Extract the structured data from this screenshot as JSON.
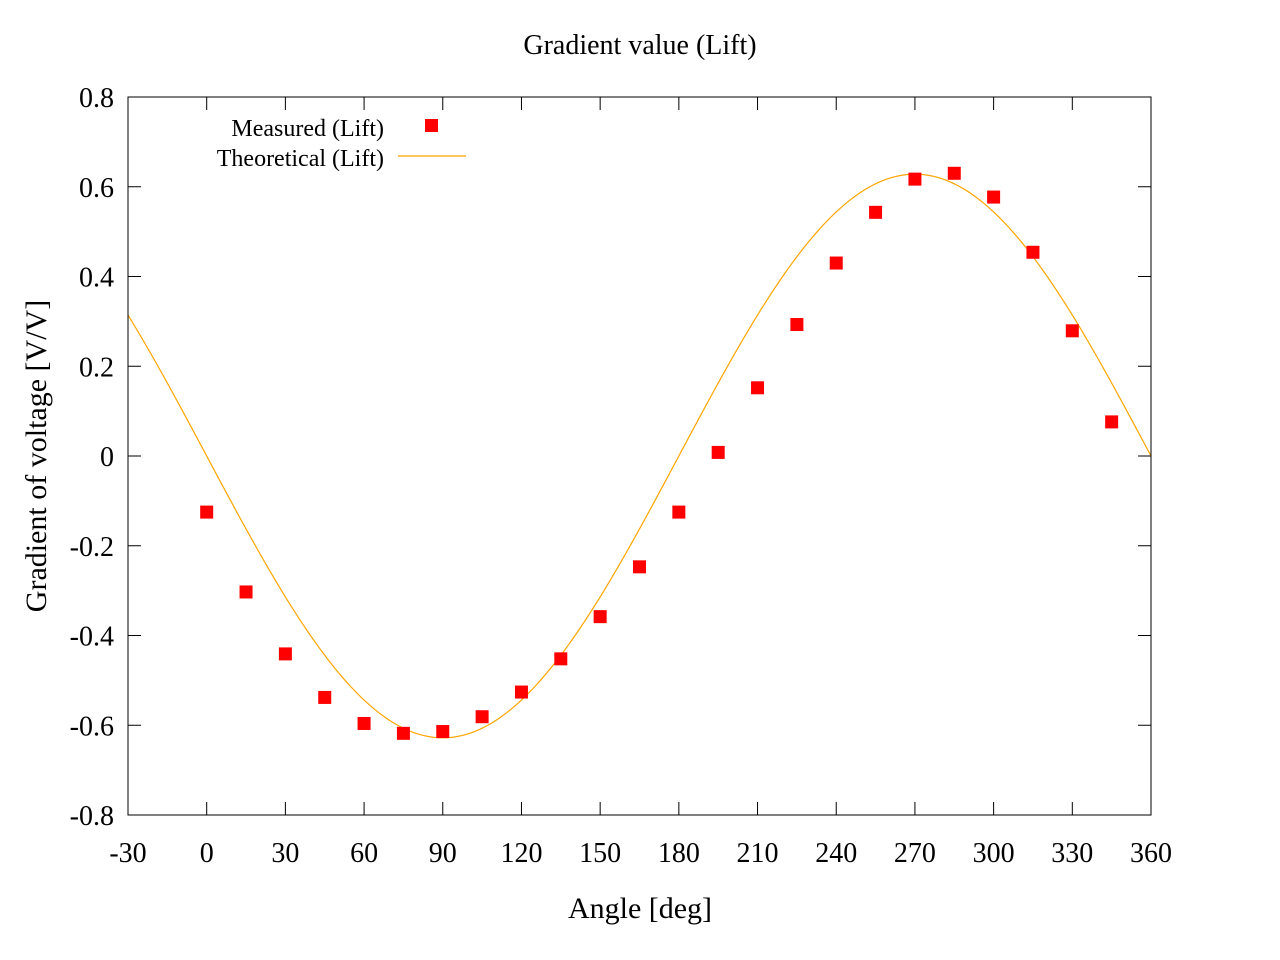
{
  "chart_data": {
    "type": "scatter",
    "title": "Gradient value (Lift)",
    "xlabel": "Angle [deg]",
    "ylabel": "Gradient of voltage [V/V]",
    "xlim": [
      -30,
      360
    ],
    "ylim": [
      -0.8,
      0.8
    ],
    "x_ticks": [
      -30,
      0,
      30,
      60,
      90,
      120,
      150,
      180,
      210,
      240,
      270,
      300,
      330,
      360
    ],
    "x_tick_labels": [
      "-30",
      "0",
      "30",
      "60",
      "90",
      "120",
      "150",
      "180",
      "210",
      "240",
      "270",
      "300",
      "330",
      "360"
    ],
    "y_ticks": [
      -0.8,
      -0.6,
      -0.4,
      -0.2,
      0,
      0.2,
      0.4,
      0.6,
      0.8
    ],
    "y_tick_labels": [
      "-0.8",
      "-0.6",
      "-0.4",
      "-0.2",
      "0",
      "0.2",
      "0.4",
      "0.6",
      "0.8"
    ],
    "grid": false,
    "legend_position": "top-left",
    "series": [
      {
        "name": "Measured (Lift)",
        "kind": "scatter",
        "marker": "square",
        "color": "#ff0000",
        "x": [
          0,
          15,
          30,
          45,
          60,
          75,
          90,
          105,
          120,
          135,
          150,
          165,
          180,
          195,
          210,
          225,
          240,
          255,
          270,
          285,
          300,
          315,
          330,
          345
        ],
        "y": [
          -0.125,
          -0.303,
          -0.441,
          -0.538,
          -0.596,
          -0.618,
          -0.614,
          -0.581,
          -0.526,
          -0.452,
          -0.358,
          -0.247,
          -0.125,
          0.008,
          0.152,
          0.293,
          0.43,
          0.543,
          0.617,
          0.63,
          0.577,
          0.454,
          0.279,
          0.076
        ]
      },
      {
        "name": "Theoretical (Lift)",
        "kind": "line",
        "color": "#ffa500",
        "function": "-0.628 * sin(angle)",
        "amplitude": 0.628
      }
    ]
  }
}
